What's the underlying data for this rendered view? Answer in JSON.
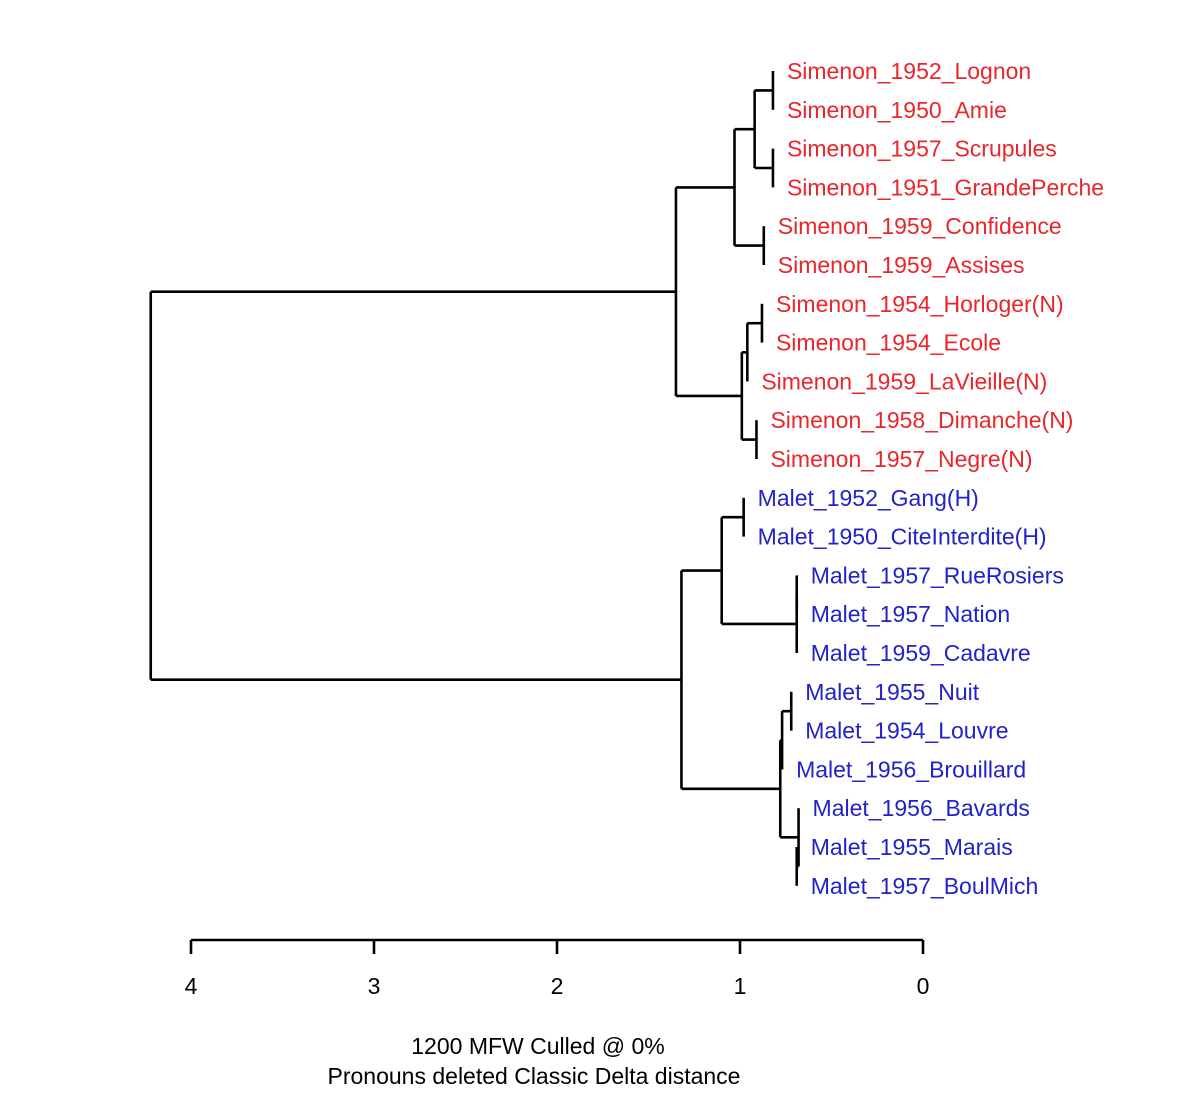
{
  "chart_data": {
    "type": "dendrogram",
    "caption_lines": [
      "1200 MFW  Culled @ 0%",
      "Pronouns deleted Classic Delta distance"
    ],
    "axis": {
      "ticks": [
        4,
        3,
        2,
        1,
        0
      ],
      "range": [
        4,
        0
      ]
    },
    "colors": {
      "Simenon": "#e8262b",
      "Malet": "#2222c8",
      "tree": "#000000"
    },
    "leaves": [
      {
        "label": "Simenon_1952_Lognon",
        "group": "Simenon",
        "h": 0.82
      },
      {
        "label": "Simenon_1950_Amie",
        "group": "Simenon",
        "h": 0.82
      },
      {
        "label": "Simenon_1957_Scrupules",
        "group": "Simenon",
        "h": 0.82
      },
      {
        "label": "Simenon_1951_GrandePerche",
        "group": "Simenon",
        "h": 0.82
      },
      {
        "label": "Simenon_1959_Confidence",
        "group": "Simenon",
        "h": 0.87
      },
      {
        "label": "Simenon_1959_Assises",
        "group": "Simenon",
        "h": 0.87
      },
      {
        "label": "Simenon_1954_Horloger(N)",
        "group": "Simenon",
        "h": 0.88
      },
      {
        "label": "Simenon_1954_Ecole",
        "group": "Simenon",
        "h": 0.88
      },
      {
        "label": "Simenon_1959_LaVieille(N)",
        "group": "Simenon",
        "h": 0.96
      },
      {
        "label": "Simenon_1958_Dimanche(N)",
        "group": "Simenon",
        "h": 0.91
      },
      {
        "label": "Simenon_1957_Negre(N)",
        "group": "Simenon",
        "h": 0.91
      },
      {
        "label": "Malet_1952_Gang(H)",
        "group": "Malet",
        "h": 0.98
      },
      {
        "label": "Malet_1950_CiteInterdite(H)",
        "group": "Malet",
        "h": 0.98
      },
      {
        "label": "Malet_1957_RueRosiers",
        "group": "Malet",
        "h": 0.69
      },
      {
        "label": "Malet_1957_Nation",
        "group": "Malet",
        "h": 0.69
      },
      {
        "label": "Malet_1959_Cadavre",
        "group": "Malet",
        "h": 0.69
      },
      {
        "label": "Malet_1955_Nuit",
        "group": "Malet",
        "h": 0.72
      },
      {
        "label": "Malet_1954_Louvre",
        "group": "Malet",
        "h": 0.72
      },
      {
        "label": "Malet_1956_Brouillard",
        "group": "Malet",
        "h": 0.77
      },
      {
        "label": "Malet_1956_Bavards",
        "group": "Malet",
        "h": 0.68
      },
      {
        "label": "Malet_1955_Marais",
        "group": "Malet",
        "h": 0.69
      },
      {
        "label": "Malet_1957_BoulMich",
        "group": "Malet",
        "h": 0.69
      }
    ],
    "merges": [
      {
        "a": "L0",
        "b": "L1",
        "h": 0.82
      },
      {
        "a": "L2",
        "b": "L3",
        "h": 0.82
      },
      {
        "a": "M0",
        "b": "M1",
        "h": 0.92
      },
      {
        "a": "L4",
        "b": "L5",
        "h": 0.87
      },
      {
        "a": "M2",
        "b": "M3",
        "h": 1.03
      },
      {
        "a": "L6",
        "b": "L7",
        "h": 0.88
      },
      {
        "a": "M5",
        "b": "L8",
        "h": 0.96
      },
      {
        "a": "L9",
        "b": "L10",
        "h": 0.91
      },
      {
        "a": "M6",
        "b": "M7",
        "h": 0.99
      },
      {
        "a": "M4",
        "b": "M8",
        "h": 1.35
      },
      {
        "a": "L11",
        "b": "L12",
        "h": 0.98
      },
      {
        "a": "L13",
        "b": "L14",
        "h": 0.69
      },
      {
        "a": "M11",
        "b": "L15",
        "h": 0.69
      },
      {
        "a": "M10",
        "b": "M12",
        "h": 1.1
      },
      {
        "a": "L16",
        "b": "L17",
        "h": 0.72
      },
      {
        "a": "M14",
        "b": "L18",
        "h": 0.77
      },
      {
        "a": "L20",
        "b": "L21",
        "h": 0.69
      },
      {
        "a": "L19",
        "b": "M16",
        "h": 0.68
      },
      {
        "a": "M15",
        "b": "M17",
        "h": 0.78
      },
      {
        "a": "M13",
        "b": "M18",
        "h": 1.32
      },
      {
        "a": "M9",
        "b": "M19",
        "h": 4.22
      }
    ]
  }
}
